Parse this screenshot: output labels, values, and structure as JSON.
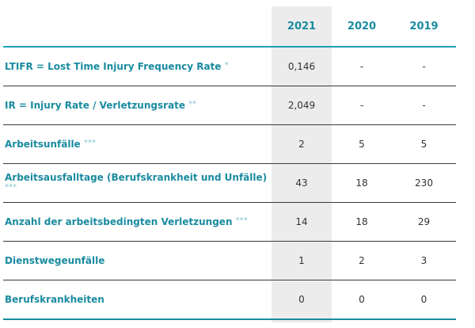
{
  "table": {
    "years": [
      "2021",
      "2020",
      "2019"
    ],
    "rows": [
      {
        "label": "LTIFR = Lost Time Injury Frequency Rate",
        "stars": "*",
        "values": [
          "0,146",
          "-",
          "-"
        ]
      },
      {
        "label": "IR = Injury Rate / Verletzungsrate",
        "stars": "**",
        "values": [
          "2,049",
          "-",
          "-"
        ]
      },
      {
        "label": "Arbeitsunfälle",
        "stars": "***",
        "values": [
          "2",
          "5",
          "5"
        ]
      },
      {
        "label": "Arbeitsausfalltage (Berufskrankheit und Unfälle)",
        "stars": "***",
        "values": [
          "43",
          "18",
          "230"
        ]
      },
      {
        "label": "Anzahl der arbeitsbedingten Verletzungen",
        "stars": "***",
        "values": [
          "14",
          "18",
          "29"
        ]
      },
      {
        "label": "Dienstwegeunfälle",
        "stars": "",
        "values": [
          "1",
          "2",
          "3"
        ]
      },
      {
        "label": "Berufskrankheiten",
        "stars": "",
        "values": [
          "0",
          "0",
          "0"
        ]
      }
    ]
  }
}
